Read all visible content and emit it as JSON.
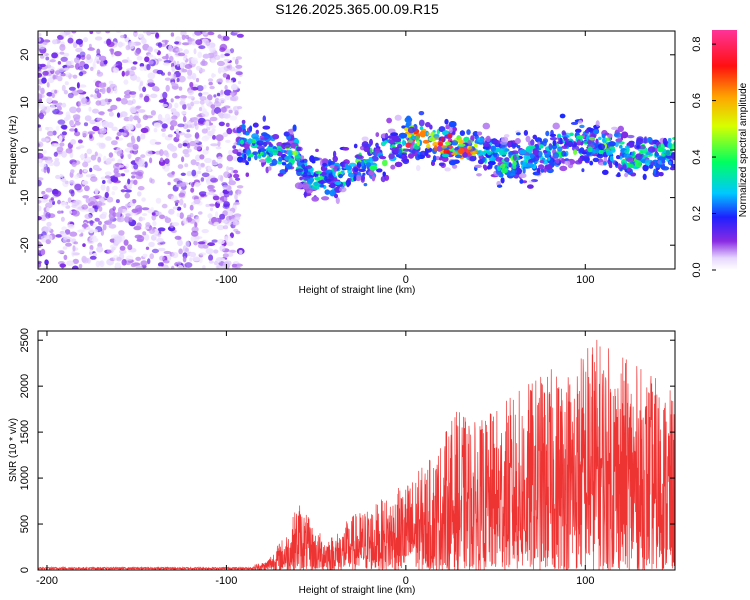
{
  "title": "S126.2025.365.00.09.R15",
  "chart_data": [
    {
      "type": "heatmap",
      "xlabel": "Height of straight line (km)",
      "ylabel": "Frequency (Hz)",
      "xlim": [
        -205,
        150
      ],
      "ylim": [
        -25,
        25
      ],
      "xticks": [
        -200,
        -100,
        0,
        100
      ],
      "yticks": [
        -20,
        -10,
        0,
        10,
        20
      ],
      "colorbar": {
        "label": "Normalized spectral amplitude",
        "range": [
          0,
          0.85
        ],
        "ticks": [
          0.0,
          0.2,
          0.4,
          0.6,
          0.8
        ],
        "tick_labels": [
          "0.0",
          "0.2",
          "0.4",
          "0.6",
          "0.8"
        ]
      },
      "regions": [
        {
          "x_range": [
            -205,
            -93
          ],
          "freq_range": [
            -25,
            25
          ],
          "amplitude": "low (0.0-0.2)"
        },
        {
          "x_range": [
            -93,
            150
          ],
          "freq_center": "~0 (wavy between -8 and 4)",
          "band_halfwidth": 6,
          "amplitude": "0.1-0.4"
        },
        {
          "x_range": [
            0,
            40
          ],
          "freq_center": 2,
          "amplitude": "peak ~0.8-0.85"
        }
      ]
    },
    {
      "type": "line",
      "xlabel": "Height of straight line (km)",
      "ylabel": "SNR (10 * v/v)",
      "xlim": [
        -205,
        150
      ],
      "ylim": [
        0,
        2600
      ],
      "xticks": [
        -200,
        -100,
        0,
        100
      ],
      "yticks": [
        0,
        500,
        1000,
        1500,
        2000,
        2500
      ],
      "color": "#ee3333",
      "envelope": [
        {
          "x": -205,
          "max": 30
        },
        {
          "x": -90,
          "max": 30
        },
        {
          "x": -78,
          "max": 100
        },
        {
          "x": -65,
          "max": 450
        },
        {
          "x": -60,
          "max": 780
        },
        {
          "x": -50,
          "max": 420
        },
        {
          "x": -40,
          "max": 380
        },
        {
          "x": -30,
          "max": 600
        },
        {
          "x": -15,
          "max": 750
        },
        {
          "x": 0,
          "max": 950
        },
        {
          "x": 15,
          "max": 1250
        },
        {
          "x": 28,
          "max": 1750
        },
        {
          "x": 40,
          "max": 1600
        },
        {
          "x": 55,
          "max": 1850
        },
        {
          "x": 75,
          "max": 2150
        },
        {
          "x": 95,
          "max": 2300
        },
        {
          "x": 103,
          "max": 2600
        },
        {
          "x": 120,
          "max": 2350
        },
        {
          "x": 140,
          "max": 2100
        },
        {
          "x": 150,
          "max": 1900
        }
      ]
    }
  ]
}
